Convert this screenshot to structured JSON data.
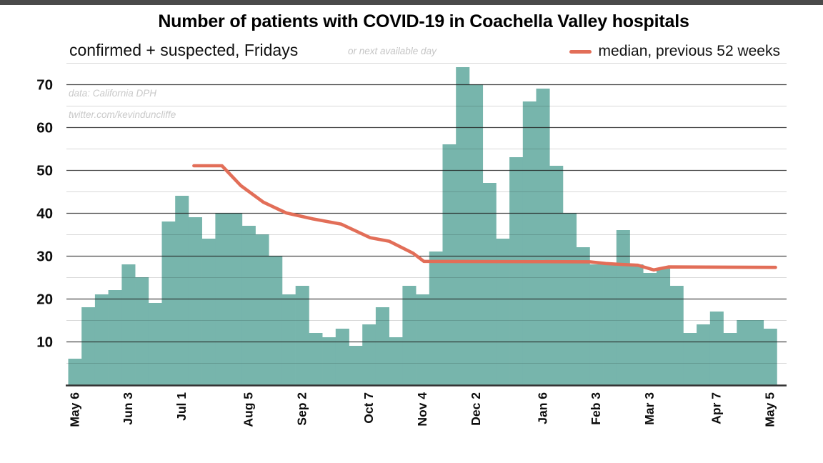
{
  "annotations": {
    "source": "data: California DPH",
    "credit": "twitter.com/kevinduncliffe"
  },
  "colors": {
    "bar": "#77b5ac",
    "median": "#e26e58",
    "grid_major": "rgba(30,30,30,0.82)",
    "grid_minor": "rgba(0,0,0,0.15)",
    "axis": "#333333",
    "tick_text": "#0d0d0d",
    "note_gray": "#c9c9c9",
    "window_top_bar": "#4a4a4a"
  },
  "chart_data": {
    "type": "bar",
    "title": "Number of patients with COVID-19 in Coachella Valley hospitals",
    "subtitle": "confirmed + suspected, Fridays",
    "subtitle_note": "or next available day",
    "grid": true,
    "legend_position": "top-right",
    "ylim": [
      0,
      78
    ],
    "y_ticks": [
      10,
      20,
      30,
      40,
      50,
      60,
      70
    ],
    "y_minor_ticks": [
      5,
      15,
      25,
      35,
      45,
      55,
      65,
      75
    ],
    "x_tick_labels": [
      {
        "index": 0,
        "label": "May 6"
      },
      {
        "index": 4,
        "label": "Jun 3"
      },
      {
        "index": 8,
        "label": "Jul 1"
      },
      {
        "index": 13,
        "label": "Aug 5"
      },
      {
        "index": 17,
        "label": "Sep 2"
      },
      {
        "index": 22,
        "label": "Oct 7"
      },
      {
        "index": 26,
        "label": "Nov 4"
      },
      {
        "index": 30,
        "label": "Dec 2"
      },
      {
        "index": 35,
        "label": "Jan 6"
      },
      {
        "index": 39,
        "label": "Feb 3"
      },
      {
        "index": 43,
        "label": "Mar 3"
      },
      {
        "index": 48,
        "label": "Apr 7"
      },
      {
        "index": 52,
        "label": "May 5"
      }
    ],
    "values": [
      6,
      18,
      21,
      22,
      28,
      25,
      19,
      38,
      44,
      39,
      34,
      40,
      40,
      37,
      35,
      30,
      21,
      23,
      12,
      11,
      13,
      9,
      14,
      18,
      11,
      23,
      21,
      31,
      56,
      74,
      70,
      47,
      34,
      53,
      66,
      69,
      51,
      40,
      32,
      28,
      28,
      36,
      28,
      26,
      27,
      23,
      12,
      14,
      17,
      12,
      15,
      15,
      13
    ],
    "median_series": {
      "name": "median, previous 52 weeks",
      "points_index_value": [
        [
          8.9,
          51
        ],
        [
          11.0,
          51
        ],
        [
          12.4,
          46.4
        ],
        [
          14.1,
          42.5
        ],
        [
          15.8,
          40
        ],
        [
          17.8,
          38.6
        ],
        [
          19.9,
          37.4
        ],
        [
          22.1,
          34.2
        ],
        [
          23.5,
          33.4
        ],
        [
          25.3,
          30.6
        ],
        [
          26.1,
          28.7
        ],
        [
          38.5,
          28.6
        ],
        [
          39.7,
          28.2
        ],
        [
          40.8,
          28.0
        ],
        [
          42.1,
          27.8
        ],
        [
          43.3,
          26.7
        ],
        [
          44.4,
          27.4
        ],
        [
          52.4,
          27.3
        ]
      ]
    }
  }
}
